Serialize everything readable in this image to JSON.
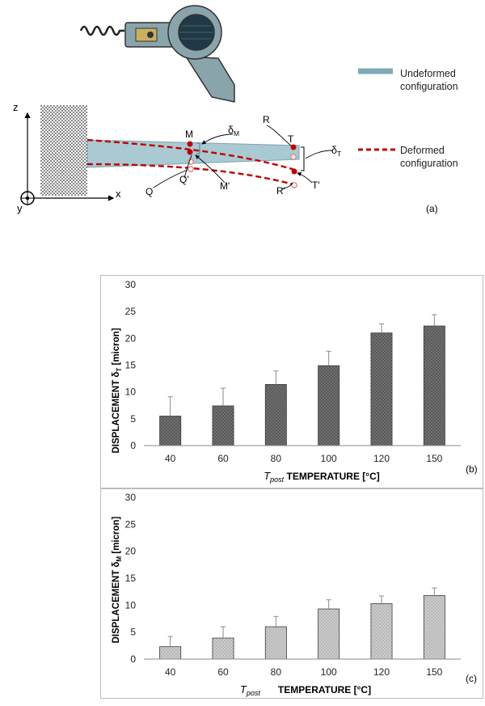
{
  "diagram": {
    "legend": {
      "undeformed": [
        "Undeformed",
        "configuration"
      ],
      "deformed": [
        "Deformed",
        "configuration"
      ]
    },
    "axes": {
      "z": "z",
      "x": "x",
      "y": "y"
    },
    "points": {
      "M": "M",
      "T": "T",
      "R": "R",
      "Q": "Q",
      "Q_prime": "Q'",
      "M_prime": "M'",
      "R_prime": "R'",
      "T_prime": "T'",
      "delta": "δ",
      "sub_M": "M",
      "sub_T": "T"
    },
    "panel_label": "(a)"
  },
  "charts": {
    "b": {
      "panel_label": "(b)",
      "ylabel": {
        "prefix": "DISPLACEMENT δ",
        "sub": "T",
        "suffix": " [micron]"
      },
      "xlabel": {
        "italic": "T",
        "italic_sub": "post",
        "rest": " TEMPERATURE [°C]"
      }
    },
    "c": {
      "panel_label": "(c)",
      "ylabel": {
        "prefix": "DISPLACEMENT δ",
        "sub": "M",
        "suffix": " [micron]"
      },
      "xlabel": {
        "italic": "T",
        "italic_sub": "post",
        "rest": "TEMPERATURE [°C]"
      }
    }
  },
  "chart_data": [
    {
      "type": "bar",
      "categories": [
        "40",
        "60",
        "80",
        "100",
        "120",
        "150"
      ],
      "values": [
        5.5,
        7.4,
        11.4,
        14.9,
        21.0,
        22.3
      ],
      "error_bars": [
        3.6,
        3.3,
        2.5,
        2.7,
        1.7,
        2.1
      ],
      "ylim": [
        0,
        30
      ],
      "yticks": [
        0,
        5,
        10,
        15,
        20,
        25,
        30
      ],
      "bar_color": "#6f6f6f"
    },
    {
      "type": "bar",
      "categories": [
        "40",
        "60",
        "80",
        "100",
        "120",
        "150"
      ],
      "values": [
        2.3,
        3.9,
        6.0,
        9.3,
        10.3,
        11.8
      ],
      "error_bars": [
        1.9,
        2.1,
        1.9,
        1.7,
        1.4,
        1.4
      ],
      "ylim": [
        0,
        30
      ],
      "yticks": [
        0,
        5,
        10,
        15,
        20,
        25,
        30
      ],
      "bar_color": "#c8c8c8"
    }
  ]
}
